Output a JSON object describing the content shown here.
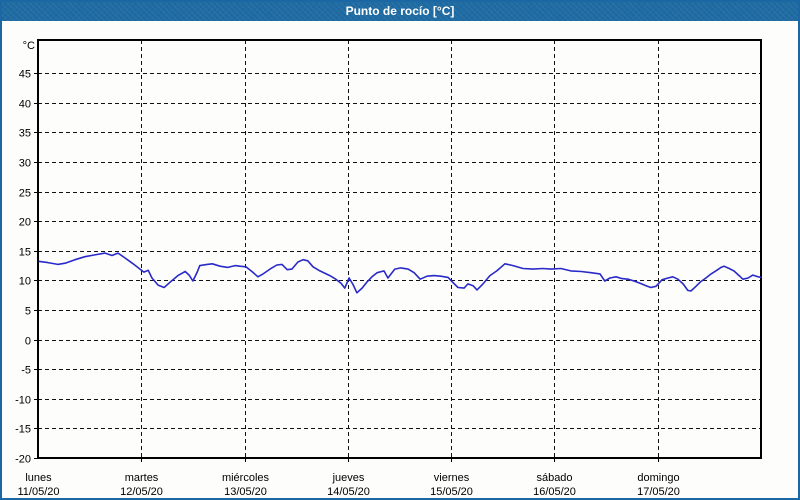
{
  "window": {
    "title": "Punto de rocío [°C]"
  },
  "colors": {
    "titlebar_bg": "#1f6ba3",
    "titlebar_text": "#ffffff",
    "window_border": "#1a67a3",
    "plot_background": "#fdfefb",
    "grid_color": "#111111",
    "axis_text_color": "#000000",
    "series_color": "#2a2ac8"
  },
  "chart_data": {
    "type": "line",
    "title": "Punto de rocío [°C]",
    "ylabel": "°C",
    "xlabel": "",
    "grid": "dashed",
    "legend_position": "none",
    "y_ticks": [
      45,
      40,
      35,
      30,
      25,
      20,
      15,
      10,
      5,
      0,
      -5,
      -10,
      -15,
      -20
    ],
    "ylim": [
      -20,
      50.6
    ],
    "x_total_hours": 168,
    "x_days": [
      {
        "name": "lunes",
        "date": "11/05/20"
      },
      {
        "name": "martes",
        "date": "12/05/20"
      },
      {
        "name": "miércoles",
        "date": "13/05/20"
      },
      {
        "name": "jueves",
        "date": "14/05/20"
      },
      {
        "name": "viernes",
        "date": "15/05/20"
      },
      {
        "name": "sábado",
        "date": "16/05/20"
      },
      {
        "name": "domingo",
        "date": "17/05/20"
      }
    ],
    "series": [
      {
        "name": "Punto de rocío",
        "unit": "°C",
        "color": "#2a2ac8",
        "points": [
          [
            0.3,
            13.2
          ],
          [
            2.3,
            13.0
          ],
          [
            4.6,
            12.7
          ],
          [
            6.3,
            12.9
          ],
          [
            8.6,
            13.5
          ],
          [
            10.9,
            14.0
          ],
          [
            13.2,
            14.3
          ],
          [
            15.6,
            14.6
          ],
          [
            17.2,
            14.2
          ],
          [
            18.6,
            14.6
          ],
          [
            20.2,
            13.8
          ],
          [
            22.1,
            12.8
          ],
          [
            23.7,
            11.9
          ],
          [
            24.6,
            11.4
          ],
          [
            25.6,
            11.7
          ],
          [
            26.5,
            10.4
          ],
          [
            27.9,
            9.2
          ],
          [
            29.3,
            8.8
          ],
          [
            30.7,
            9.7
          ],
          [
            32.5,
            10.8
          ],
          [
            34.2,
            11.5
          ],
          [
            35.1,
            10.9
          ],
          [
            36.0,
            9.9
          ],
          [
            37.0,
            11.4
          ],
          [
            37.6,
            12.5
          ],
          [
            39.3,
            12.7
          ],
          [
            40.5,
            12.8
          ],
          [
            42.3,
            12.4
          ],
          [
            44.1,
            12.2
          ],
          [
            45.8,
            12.5
          ],
          [
            46.9,
            12.4
          ],
          [
            48.3,
            12.3
          ],
          [
            49.7,
            11.5
          ],
          [
            51.1,
            10.6
          ],
          [
            52.3,
            11.1
          ],
          [
            53.9,
            11.9
          ],
          [
            55.5,
            12.6
          ],
          [
            56.7,
            12.7
          ],
          [
            57.9,
            11.8
          ],
          [
            59.0,
            11.9
          ],
          [
            60.4,
            13.1
          ],
          [
            61.6,
            13.5
          ],
          [
            62.7,
            13.3
          ],
          [
            63.9,
            12.3
          ],
          [
            65.5,
            11.6
          ],
          [
            67.8,
            10.8
          ],
          [
            69.2,
            10.2
          ],
          [
            70.4,
            9.5
          ],
          [
            71.3,
            8.7
          ],
          [
            72.3,
            10.4
          ],
          [
            73.2,
            9.3
          ],
          [
            74.1,
            7.9
          ],
          [
            75.3,
            8.7
          ],
          [
            76.4,
            9.7
          ],
          [
            77.6,
            10.6
          ],
          [
            78.8,
            11.3
          ],
          [
            80.4,
            11.6
          ],
          [
            81.3,
            10.4
          ],
          [
            82.9,
            11.9
          ],
          [
            84.3,
            12.1
          ],
          [
            86.0,
            11.9
          ],
          [
            87.4,
            11.3
          ],
          [
            88.8,
            10.2
          ],
          [
            90.4,
            10.7
          ],
          [
            92.0,
            10.8
          ],
          [
            93.6,
            10.7
          ],
          [
            95.3,
            10.5
          ],
          [
            96.2,
            9.8
          ],
          [
            97.6,
            8.8
          ],
          [
            99.0,
            8.7
          ],
          [
            99.9,
            9.4
          ],
          [
            101.1,
            9.1
          ],
          [
            102.0,
            8.4
          ],
          [
            103.4,
            9.4
          ],
          [
            105.0,
            10.8
          ],
          [
            106.6,
            11.6
          ],
          [
            108.5,
            12.8
          ],
          [
            110.4,
            12.5
          ],
          [
            112.7,
            12.0
          ],
          [
            115.0,
            11.9
          ],
          [
            117.3,
            12.0
          ],
          [
            119.2,
            11.9
          ],
          [
            121.5,
            12.0
          ],
          [
            123.8,
            11.6
          ],
          [
            126.2,
            11.5
          ],
          [
            128.5,
            11.3
          ],
          [
            130.6,
            11.1
          ],
          [
            131.7,
            9.9
          ],
          [
            132.9,
            10.4
          ],
          [
            134.3,
            10.6
          ],
          [
            135.7,
            10.3
          ],
          [
            137.1,
            10.2
          ],
          [
            138.5,
            9.9
          ],
          [
            139.9,
            9.5
          ],
          [
            141.3,
            9.1
          ],
          [
            142.4,
            8.8
          ],
          [
            143.6,
            9.0
          ],
          [
            145.0,
            10.1
          ],
          [
            146.4,
            10.4
          ],
          [
            147.5,
            10.6
          ],
          [
            148.7,
            10.2
          ],
          [
            149.9,
            9.4
          ],
          [
            151.0,
            8.3
          ],
          [
            151.7,
            8.2
          ],
          [
            152.9,
            9.0
          ],
          [
            154.0,
            9.8
          ],
          [
            155.2,
            10.4
          ],
          [
            156.4,
            11.1
          ],
          [
            157.5,
            11.6
          ],
          [
            158.7,
            12.2
          ],
          [
            159.4,
            12.4
          ],
          [
            160.6,
            12.0
          ],
          [
            161.7,
            11.6
          ],
          [
            162.9,
            10.8
          ],
          [
            163.8,
            10.2
          ],
          [
            165.0,
            10.4
          ],
          [
            166.1,
            10.9
          ],
          [
            167.3,
            10.6
          ],
          [
            168.0,
            10.5
          ]
        ]
      }
    ]
  }
}
